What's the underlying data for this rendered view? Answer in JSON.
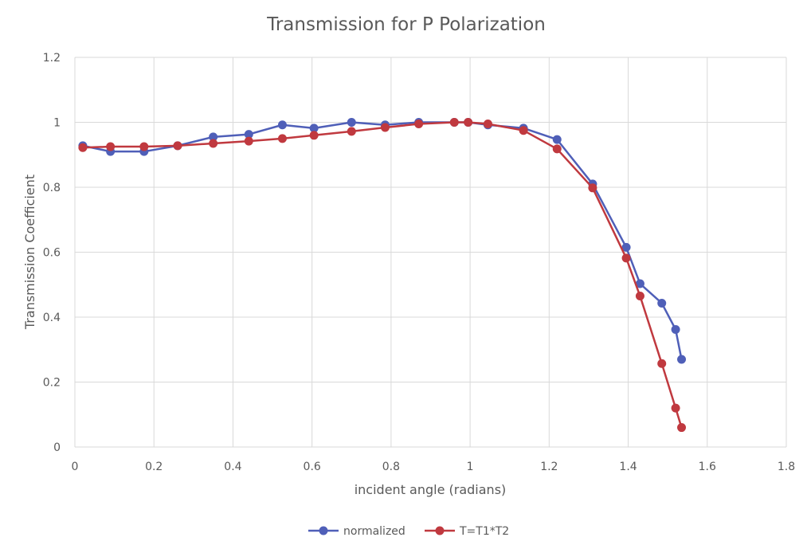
{
  "chart_data": {
    "type": "scatter",
    "title": "Transmission for P Polarization",
    "xlabel": "incident angle (radians)",
    "ylabel": "Transmission Coefficient",
    "xlim": [
      0,
      1.8
    ],
    "ylim": [
      0,
      1.2
    ],
    "x_ticks": [
      "0",
      "0.2",
      "0.4",
      "0.6",
      "0.8",
      "1",
      "1.2",
      "1.4",
      "1.6",
      "1.8"
    ],
    "y_ticks": [
      "0",
      "0.2",
      "0.4",
      "0.6",
      "0.8",
      "1",
      "1.2"
    ],
    "grid": true,
    "legend_position": "bottom",
    "series": [
      {
        "name": "normalized",
        "color": "#4F5FB8",
        "points": [
          [
            0.02,
            0.928
          ],
          [
            0.09,
            0.91
          ],
          [
            0.175,
            0.91
          ],
          [
            0.26,
            0.928
          ],
          [
            0.35,
            0.955
          ],
          [
            0.44,
            0.963
          ],
          [
            0.525,
            0.992
          ],
          [
            0.605,
            0.982
          ],
          [
            0.7,
            1.0
          ],
          [
            0.785,
            0.992
          ],
          [
            0.87,
            1.0
          ],
          [
            0.96,
            1.0
          ],
          [
            0.995,
            1.0
          ],
          [
            1.045,
            0.992
          ],
          [
            1.135,
            0.982
          ],
          [
            1.22,
            0.947
          ],
          [
            1.31,
            0.81
          ],
          [
            1.395,
            0.615
          ],
          [
            1.43,
            0.503
          ],
          [
            1.485,
            0.443
          ],
          [
            1.52,
            0.362
          ],
          [
            1.535,
            0.27
          ]
        ]
      },
      {
        "name": "T=T1*T2",
        "color": "#C0393F",
        "points": [
          [
            0.02,
            0.922
          ],
          [
            0.09,
            0.925
          ],
          [
            0.175,
            0.925
          ],
          [
            0.26,
            0.928
          ],
          [
            0.35,
            0.935
          ],
          [
            0.44,
            0.942
          ],
          [
            0.525,
            0.95
          ],
          [
            0.605,
            0.96
          ],
          [
            0.7,
            0.972
          ],
          [
            0.785,
            0.984
          ],
          [
            0.87,
            0.995
          ],
          [
            0.96,
            1.0
          ],
          [
            0.995,
            1.0
          ],
          [
            1.045,
            0.995
          ],
          [
            1.135,
            0.975
          ],
          [
            1.22,
            0.918
          ],
          [
            1.31,
            0.798
          ],
          [
            1.395,
            0.582
          ],
          [
            1.43,
            0.465
          ],
          [
            1.485,
            0.257
          ],
          [
            1.52,
            0.12
          ],
          [
            1.535,
            0.06
          ]
        ]
      }
    ]
  }
}
